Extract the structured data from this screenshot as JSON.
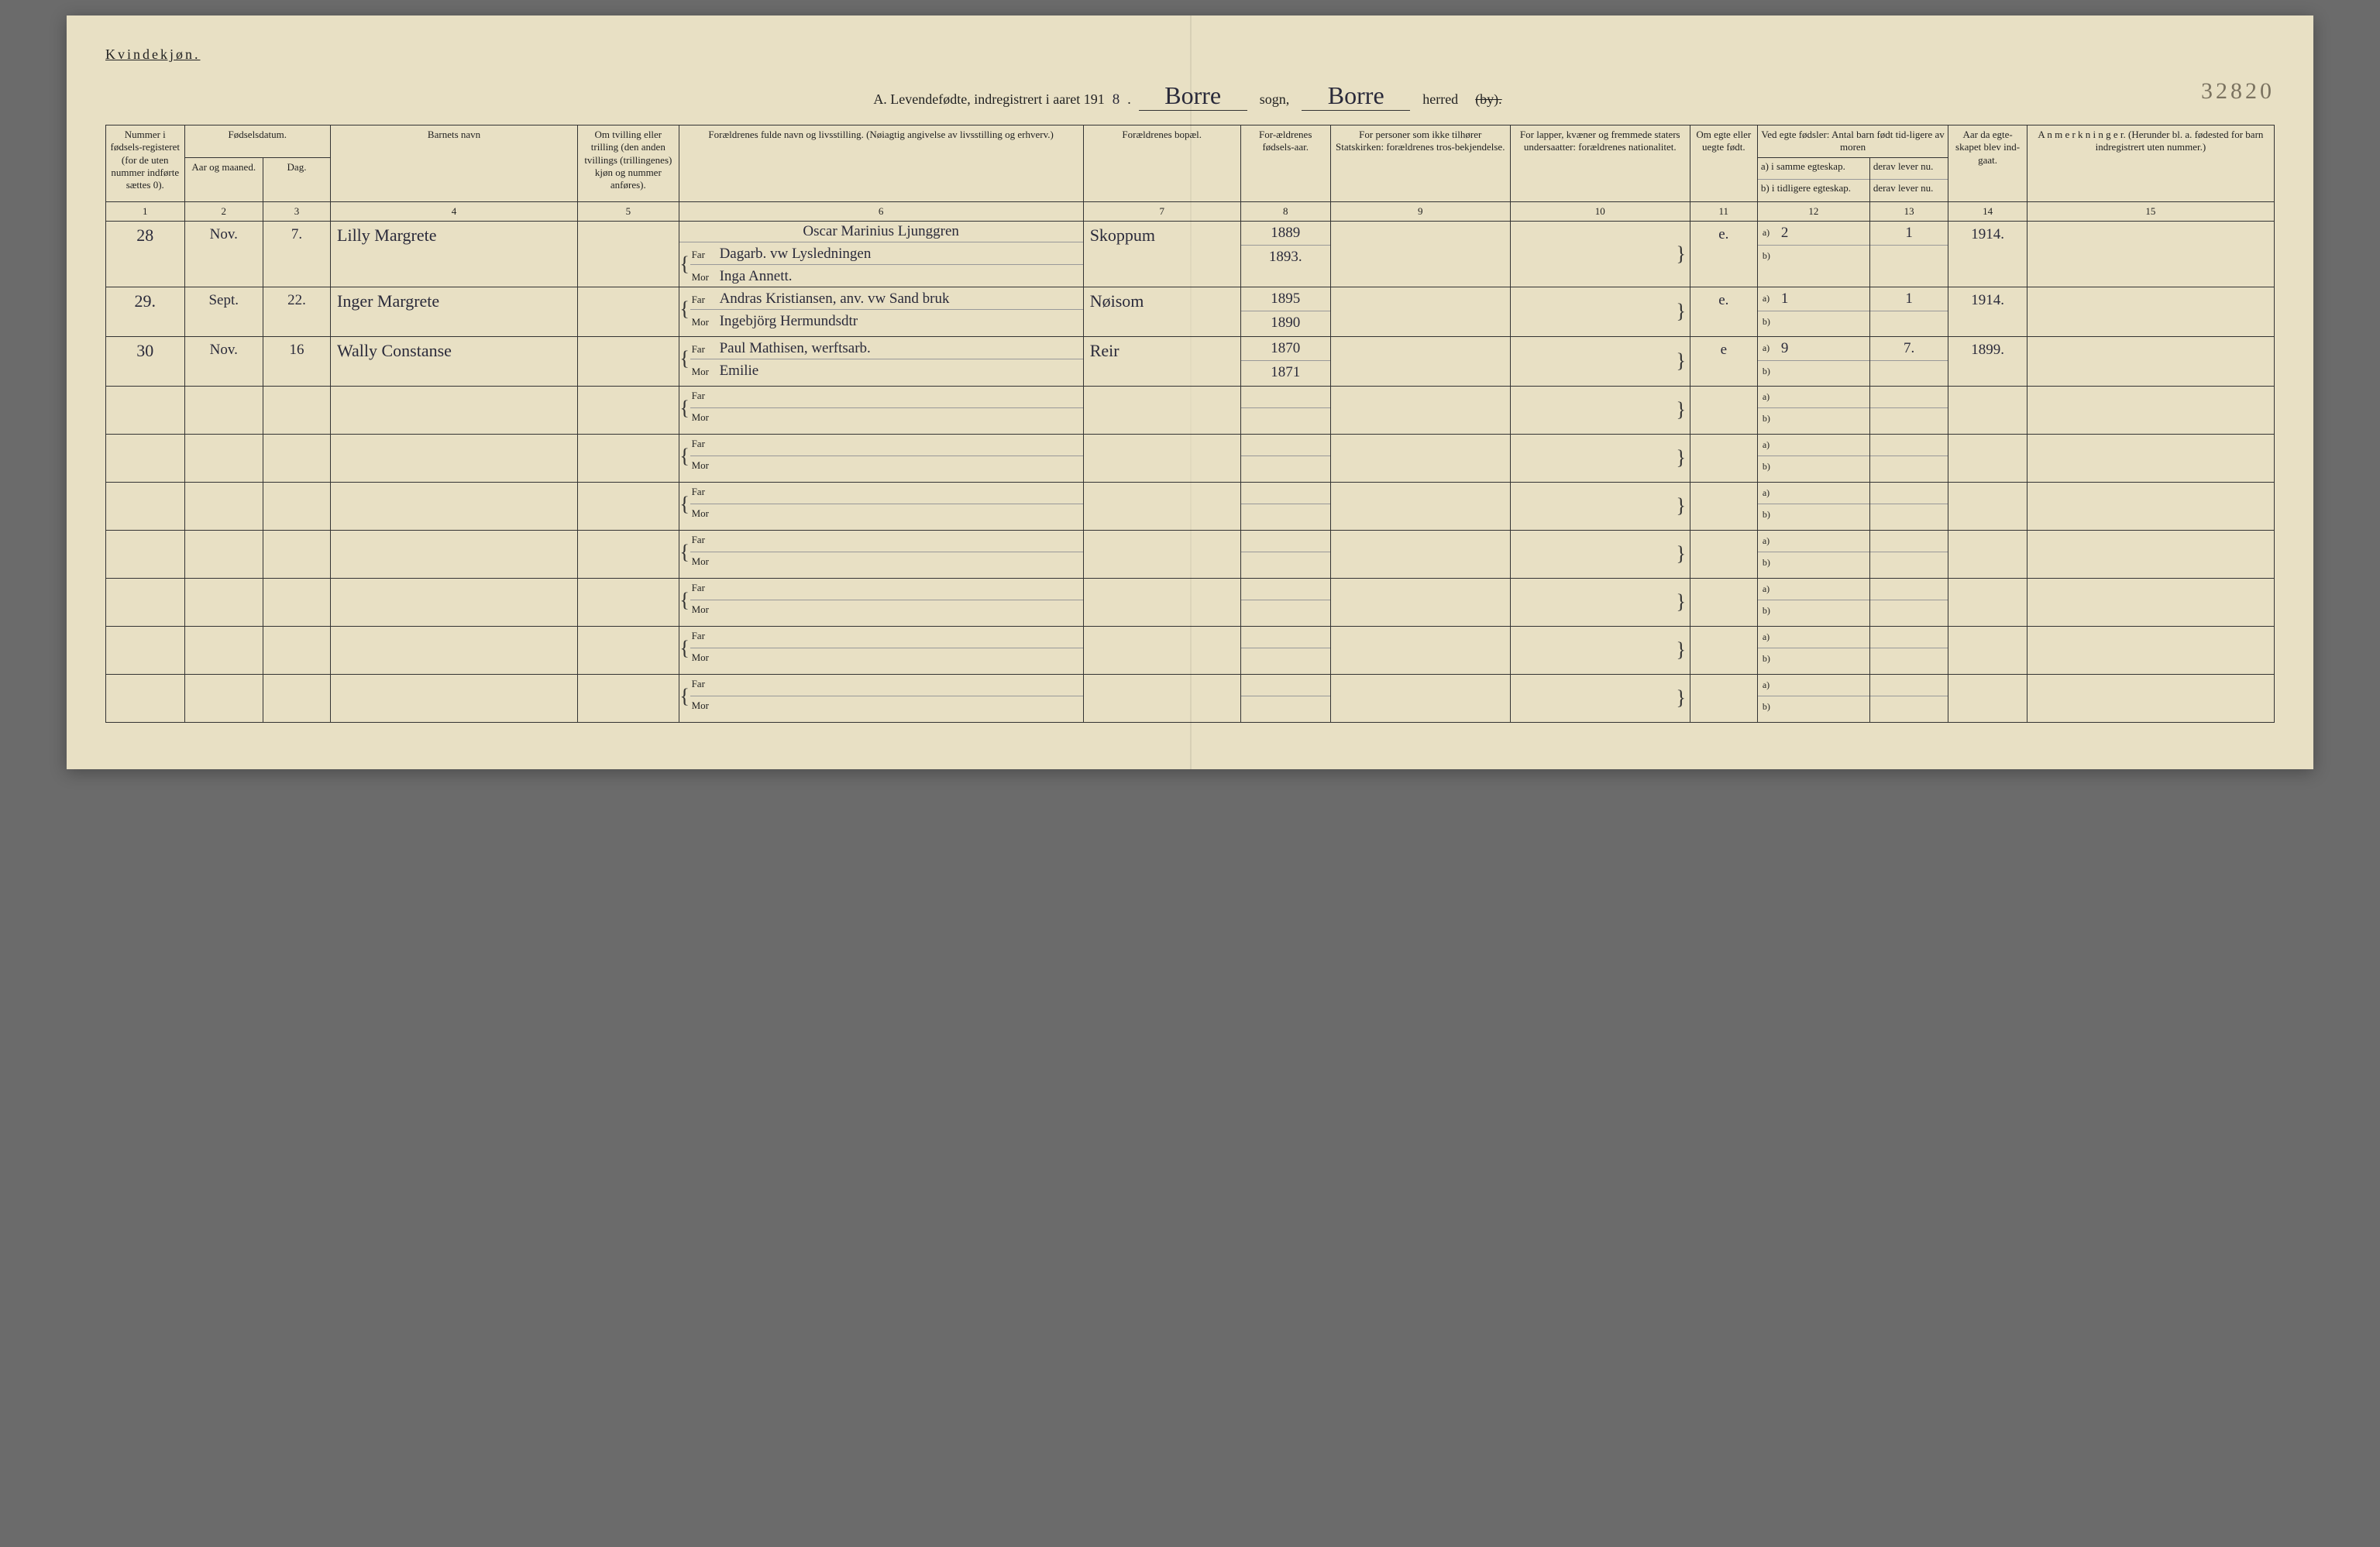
{
  "page": {
    "gender_label": "Kvindekjøn.",
    "title_prefix": "A. Levendefødte, indregistrert i aaret 191",
    "year_digit": "8",
    "sogn_value": "Borre",
    "sogn_label": "sogn,",
    "herred_value": "Borre",
    "herred_label": "herred",
    "by_strike": "(by).",
    "page_number_hand": "32820"
  },
  "headers": {
    "c1": "Nummer i fødsels-registeret (for de uten nummer indførte sættes 0).",
    "c23_top": "Fødselsdatum.",
    "c2": "Aar og maaned.",
    "c3": "Dag.",
    "c4": "Barnets navn",
    "c5": "Om tvilling eller trilling (den anden tvillings (trillingenes) kjøn og nummer anføres).",
    "c6": "Forældrenes fulde navn og livsstilling. (Nøiagtig angivelse av livsstilling og erhverv.)",
    "c7": "Forældrenes bopæl.",
    "c8": "For-ældrenes fødsels-aar.",
    "c9": "For personer som ikke tilhører Statskirken: forældrenes tros-bekjendelse.",
    "c10": "For lapper, kvæner og fremmede staters undersaatter: forældrenes nationalitet.",
    "c11": "Om egte eller uegte født.",
    "c1213_top": "Ved egte fødsler: Antal barn født tid-ligere av moren",
    "c12a": "a) i samme egteskap.",
    "c12b": "b) i tidligere egteskap.",
    "c13a": "derav lever nu.",
    "c13b": "derav lever nu.",
    "c14": "Aar da egte-skapet blev ind-gaat.",
    "c15": "A n m e r k n i n g e r. (Herunder bl. a. fødested for barn indregistrert uten nummer.)",
    "far": "Far",
    "mor": "Mor",
    "a": "a)",
    "b": "b)"
  },
  "colnums": [
    "1",
    "2",
    "3",
    "4",
    "5",
    "6",
    "7",
    "8",
    "9",
    "10",
    "11",
    "12",
    "13",
    "14",
    "15"
  ],
  "rows": [
    {
      "num": "28",
      "month": "Nov.",
      "day": "7.",
      "child": "Lilly Margrete",
      "far_extra": "Oscar Marinius Ljunggren",
      "far": "Dagarb. vw Lysledningen",
      "mor": "Inga Annett.",
      "place": "Skoppum",
      "far_year": "1889",
      "mor_year": "1893.",
      "egte": "e.",
      "a_val": "2",
      "a_lev": "1",
      "marriage": "1914."
    },
    {
      "num": "29.",
      "month": "Sept.",
      "day": "22.",
      "child": "Inger Margrete",
      "far": "Andras Kristiansen, anv. vw Sand bruk",
      "mor": "Ingebjörg Hermundsdtr",
      "place": "Nøisom",
      "far_year": "1895",
      "mor_year": "1890",
      "egte": "e.",
      "a_val": "1",
      "a_lev": "1",
      "marriage": "1914."
    },
    {
      "num": "30",
      "month": "Nov.",
      "day": "16",
      "child": "Wally Constanse",
      "far": "Paul Mathisen, werftsarb.",
      "mor": "Emilie",
      "place": "Reir",
      "far_year": "1870",
      "mor_year": "1871",
      "egte": "e",
      "a_val": "9",
      "a_lev": "7.",
      "marriage": "1899."
    }
  ],
  "blank_rows": 7,
  "colors": {
    "paper": "#e8e0c4",
    "ink": "#222222",
    "handwriting": "#2a2a3a",
    "rule": "#333333",
    "faint_rule": "#999999"
  }
}
